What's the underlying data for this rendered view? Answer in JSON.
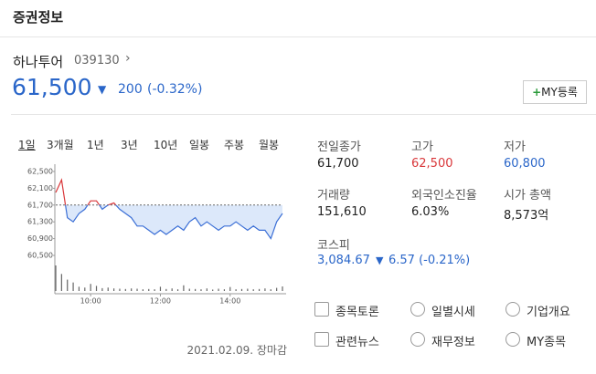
{
  "header": {
    "title": "증권정보"
  },
  "stock": {
    "name": "하나투어",
    "code": "039130",
    "price": "61,500",
    "change": "200",
    "change_pct": "(-0.32%)",
    "my_button": "MY등록"
  },
  "tabs": [
    "1일",
    "3개월",
    "1년",
    "3년",
    "10년",
    "일봉",
    "주봉",
    "월봉"
  ],
  "chart": {
    "type": "line",
    "color": "#3b6fd6",
    "up_color": "#d9373a",
    "x": [
      "09:00",
      "09:10",
      "09:20",
      "09:30",
      "09:40",
      "09:50",
      "10:00",
      "10:10",
      "10:20",
      "10:30",
      "10:40",
      "10:50",
      "11:00",
      "11:10",
      "11:20",
      "11:30",
      "11:40",
      "11:50",
      "12:00",
      "12:10",
      "12:20",
      "12:30",
      "12:40",
      "12:50",
      "13:00",
      "13:10",
      "13:20",
      "13:30",
      "13:40",
      "13:50",
      "14:00",
      "14:10",
      "14:20",
      "14:30",
      "14:40",
      "14:50",
      "15:00",
      "15:10",
      "15:20",
      "15:30"
    ],
    "values": [
      62000,
      62300,
      61400,
      61300,
      61500,
      61600,
      61800,
      61800,
      61600,
      61700,
      61750,
      61600,
      61500,
      61400,
      61200,
      61200,
      61100,
      61000,
      61100,
      61000,
      61100,
      61200,
      61100,
      61300,
      61400,
      61200,
      61300,
      61200,
      61100,
      61200,
      61200,
      61300,
      61200,
      61100,
      61200,
      61100,
      61100,
      60900,
      61300,
      61500
    ],
    "volume": [
      9000,
      6000,
      4000,
      3000,
      1500,
      1200,
      2500,
      1800,
      1000,
      1200,
      900,
      800,
      700,
      900,
      800,
      600,
      700,
      600,
      1500,
      700,
      900,
      600,
      2000,
      800,
      700,
      600,
      900,
      500,
      800,
      600,
      1400,
      600,
      700,
      800,
      600,
      700,
      900,
      600,
      1100,
      1600
    ],
    "base": 61700,
    "ylim": [
      60500,
      62500
    ],
    "yticks": [
      {
        "value": 62500,
        "label": "62,500"
      },
      {
        "value": 62100,
        "label": "62,100"
      },
      {
        "value": 61700,
        "label": "61,700"
      },
      {
        "value": 61300,
        "label": "61,300"
      },
      {
        "value": 60900,
        "label": "60,900"
      },
      {
        "value": 60500,
        "label": "60,500"
      }
    ],
    "xlim": [
      "09:00",
      "15:30"
    ],
    "xticks": [
      "10:00",
      "12:00",
      "14:00"
    ]
  },
  "stats": [
    {
      "label": "전일종가",
      "value": "61,700"
    },
    {
      "label": "고가",
      "value": "62,500"
    },
    {
      "label": "저가",
      "value": "60,800"
    },
    {
      "label": "거래량",
      "value": "151,610"
    },
    {
      "label": "외국인소진율",
      "value": "6.03%"
    },
    {
      "label": "시가 총액",
      "value": "8,573억"
    }
  ],
  "index": {
    "label": "코스피",
    "value": "3,084.67",
    "change": "6.57 (-0.21%)"
  },
  "links": [
    "종목토론",
    "일별시세",
    "기업개요",
    "관련뉴스",
    "재무정보",
    "MY종목"
  ],
  "footer": "2021.02.09. 장마감"
}
